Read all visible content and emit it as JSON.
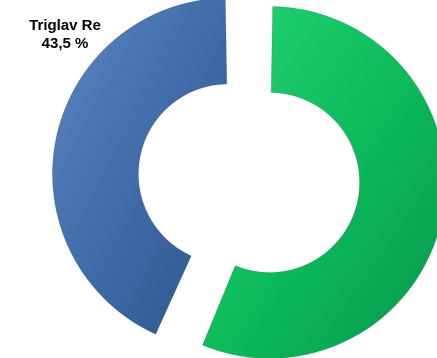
{
  "chart_data": {
    "type": "pie",
    "variant": "exploded-donut",
    "slices": [
      {
        "label": "Triglav Re",
        "value": 43.5,
        "value_text": "43,5 %",
        "color": "#3d6aa6"
      },
      {
        "value": 56.5,
        "color": "#0bb85a"
      }
    ],
    "legend": "none",
    "data_labels": [
      {
        "slice_index": 0,
        "label": "Triglav Re",
        "value_text": "43,5 %"
      }
    ]
  }
}
